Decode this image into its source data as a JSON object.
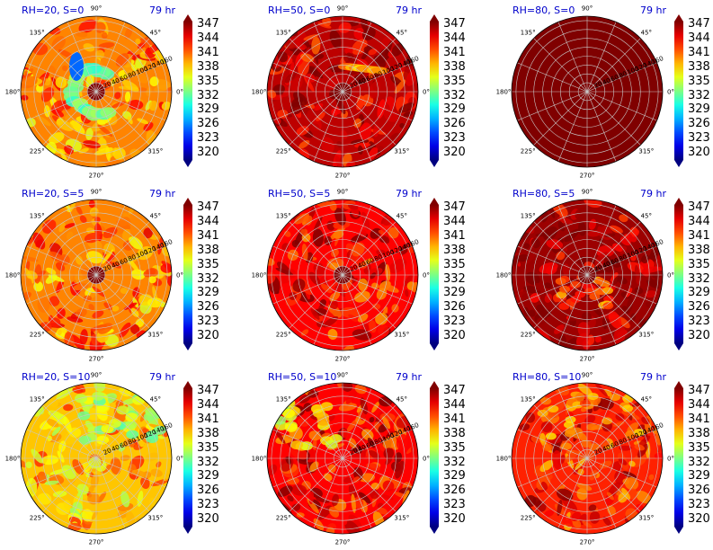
{
  "chart_data": {
    "type": "heatmap",
    "projection": "polar",
    "layout": "3x3 grid",
    "angle_tick_labels": [
      "0°",
      "45°",
      "90°",
      "135°",
      "180°",
      "225°",
      "270°",
      "315°"
    ],
    "radial_tick_labels": [
      "20",
      "40",
      "60",
      "80",
      "100",
      "120",
      "140",
      "160"
    ],
    "colorbar": {
      "colormap": "jet",
      "range": [
        320,
        347
      ],
      "tick_labels": [
        "347",
        "344",
        "341",
        "338",
        "335",
        "332",
        "329",
        "326",
        "323",
        "320"
      ]
    },
    "panels": [
      {
        "title": "RH=20, S=0",
        "time": "79 hr",
        "mean_level": 343,
        "features": [
          "cold-ring-arc"
        ],
        "show_radial_labels": true
      },
      {
        "title": "RH=50, S=0",
        "time": "79 hr",
        "mean_level": 349,
        "features": [
          "warm-streak"
        ],
        "show_radial_labels": true
      },
      {
        "title": "RH=80, S=0",
        "time": "79 hr",
        "mean_level": 352,
        "features": [],
        "show_radial_labels": true
      },
      {
        "title": "RH=20, S=5",
        "time": "79 hr",
        "mean_level": 343,
        "features": [
          "mixed-spiral"
        ],
        "show_radial_labels": true
      },
      {
        "title": "RH=50, S=5",
        "time": "79 hr",
        "mean_level": 347,
        "features": [
          "spiral-bands"
        ],
        "show_radial_labels": true
      },
      {
        "title": "RH=80, S=5",
        "time": "79 hr",
        "mean_level": 350,
        "features": [
          "south-west-blob"
        ],
        "show_radial_labels": true
      },
      {
        "title": "RH=20, S=10",
        "time": "79 hr",
        "mean_level": 341,
        "features": [
          "cool-north"
        ],
        "show_radial_labels": true
      },
      {
        "title": "RH=50, S=10",
        "time": "79 hr",
        "mean_level": 347,
        "features": [
          "north-west-cool"
        ],
        "show_radial_labels": true
      },
      {
        "title": "RH=80, S=10",
        "time": "79 hr",
        "mean_level": 346,
        "features": [
          "patchy-north"
        ],
        "show_radial_labels": true
      }
    ]
  }
}
